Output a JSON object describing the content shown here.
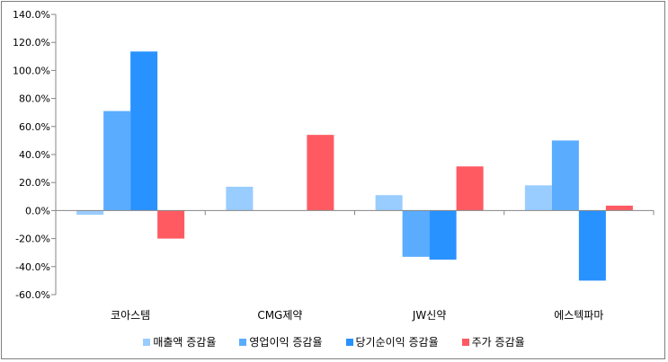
{
  "chart_data": {
    "type": "bar",
    "title": "",
    "xlabel": "",
    "ylabel": "",
    "categories": [
      "코아스템",
      "CMG제약",
      "JW신약",
      "에스텍파마"
    ],
    "ylim": [
      -60,
      140
    ],
    "yticks": [
      -60,
      -40,
      -20,
      0,
      20,
      40,
      60,
      80,
      100,
      120,
      140
    ],
    "ytick_labels": [
      "-60.0%",
      "-40.0%",
      "-20.0%",
      "0.0%",
      "20.0%",
      "40.0%",
      "60.0%",
      "80.0%",
      "100.0%",
      "120.0%",
      "140.0%"
    ],
    "grid": false,
    "legend_position": "bottom",
    "series": [
      {
        "name": "매출액 증감율",
        "color": "#99ccff",
        "values": [
          -3,
          17,
          11,
          18
        ]
      },
      {
        "name": "영업이익 증감율",
        "color": "#5aacff",
        "values": [
          71,
          0,
          -33,
          50
        ]
      },
      {
        "name": "당기순이익 증감율",
        "color": "#2892ff",
        "values": [
          113.5,
          0,
          -35,
          -50
        ]
      },
      {
        "name": "주가 증감율",
        "color": "#ff5a62",
        "values": [
          -20,
          54,
          31.5,
          3.5
        ]
      }
    ]
  }
}
